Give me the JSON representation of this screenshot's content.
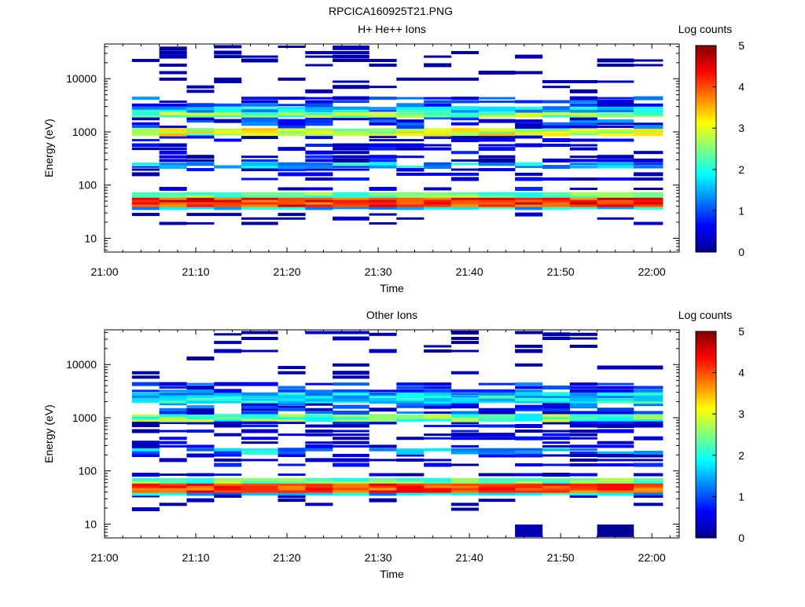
{
  "figure": {
    "title": "RPCICA160925T21.PNG"
  },
  "chart_data": [
    {
      "type": "heatmap",
      "title": "H+ He++ Ions",
      "xlabel": "Time",
      "ylabel": "Energy (eV)",
      "x_ticks": [
        "21:00",
        "21:10",
        "21:20",
        "21:30",
        "21:40",
        "21:50",
        "22:00"
      ],
      "xlim": [
        "21:00",
        "22:03"
      ],
      "y_scale": "log",
      "y_ticks": [
        "10",
        "100",
        "1000",
        "10000"
      ],
      "ylim": [
        5.5,
        45000
      ],
      "colorbar": {
        "label": "Log counts",
        "ticks": [
          "0",
          "1",
          "2",
          "3",
          "4",
          "5"
        ],
        "range": [
          0,
          5
        ],
        "colormap": "jet"
      },
      "legend_position": "right",
      "time_columns": [
        "21:03",
        "21:06",
        "21:09",
        "21:12",
        "21:15",
        "21:19",
        "21:22",
        "21:25",
        "21:29",
        "21:32",
        "21:35",
        "21:38",
        "21:41",
        "21:45",
        "21:48",
        "21:51",
        "21:54",
        "21:58"
      ],
      "energy_channels_eV": [
        7.5,
        10.5,
        19.0,
        23.5,
        28.0,
        33.5,
        37.0,
        41.5,
        46.0,
        51.0,
        56.0,
        62.0,
        68.5,
        85.0,
        130,
        160,
        195,
        220,
        250,
        290,
        340,
        410,
        480,
        560,
        700,
        800,
        900,
        1000,
        1100,
        1250,
        1420,
        1600,
        1800,
        2000,
        2200,
        2500,
        2800,
        3200,
        3700,
        4300,
        5800,
        7000,
        8800,
        9800,
        13000,
        18000,
        22000,
        26000,
        31000,
        37000,
        40000
      ],
      "peak_log_counts": 4.7
    },
    {
      "type": "heatmap",
      "title": "Other Ions",
      "xlabel": "Time",
      "ylabel": "Energy (eV)",
      "x_ticks": [
        "21:00",
        "21:10",
        "21:20",
        "21:30",
        "21:40",
        "21:50",
        "22:00"
      ],
      "xlim": [
        "21:00",
        "22:03"
      ],
      "y_scale": "log",
      "y_ticks": [
        "10",
        "100",
        "1000",
        "10000"
      ],
      "ylim": [
        5.5,
        45000
      ],
      "colorbar": {
        "label": "Log counts",
        "ticks": [
          "0",
          "1",
          "2",
          "3",
          "4",
          "5"
        ],
        "range": [
          0,
          5
        ],
        "colormap": "jet"
      },
      "legend_position": "right",
      "time_columns": [
        "21:03",
        "21:06",
        "21:09",
        "21:12",
        "21:15",
        "21:19",
        "21:22",
        "21:25",
        "21:29",
        "21:32",
        "21:35",
        "21:38",
        "21:41",
        "21:45",
        "21:48",
        "21:51",
        "21:54",
        "21:58"
      ],
      "energy_channels_eV": [
        7.5,
        10.5,
        19.0,
        23.5,
        28.0,
        33.5,
        37.0,
        41.5,
        46.0,
        51.0,
        56.0,
        62.0,
        68.5,
        85.0,
        130,
        160,
        195,
        220,
        250,
        290,
        340,
        410,
        480,
        560,
        700,
        800,
        900,
        1000,
        1100,
        1250,
        1420,
        1600,
        1800,
        2000,
        2200,
        2500,
        2800,
        3200,
        3700,
        4300,
        5800,
        7000,
        8800,
        9800,
        13000,
        18000,
        22000,
        26000,
        31000,
        37000,
        40000
      ],
      "peak_log_counts": 4.5
    }
  ]
}
